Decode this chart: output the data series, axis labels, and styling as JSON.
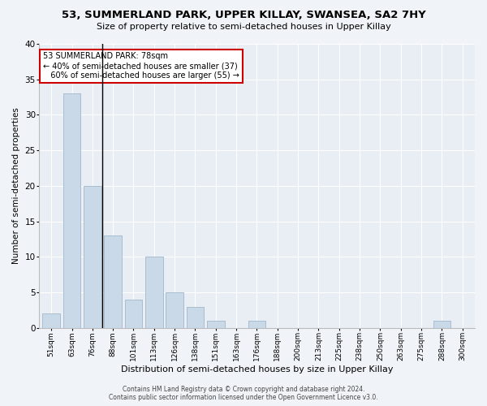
{
  "title": "53, SUMMERLAND PARK, UPPER KILLAY, SWANSEA, SA2 7HY",
  "subtitle": "Size of property relative to semi-detached houses in Upper Killay",
  "xlabel": "Distribution of semi-detached houses by size in Upper Killay",
  "ylabel": "Number of semi-detached properties",
  "categories": [
    "51sqm",
    "63sqm",
    "76sqm",
    "88sqm",
    "101sqm",
    "113sqm",
    "126sqm",
    "138sqm",
    "151sqm",
    "163sqm",
    "176sqm",
    "188sqm",
    "200sqm",
    "213sqm",
    "225sqm",
    "238sqm",
    "250sqm",
    "263sqm",
    "275sqm",
    "288sqm",
    "300sqm"
  ],
  "values": [
    2,
    33,
    20,
    13,
    4,
    10,
    5,
    3,
    1,
    0,
    1,
    0,
    0,
    0,
    0,
    0,
    0,
    0,
    0,
    1,
    0
  ],
  "bar_color": "#c9d9e8",
  "bar_edge_color": "#a0b8cc",
  "vline_x": 2.5,
  "vline_color": "#000000",
  "annotation_text": "53 SUMMERLAND PARK: 78sqm\n← 40% of semi-detached houses are smaller (37)\n   60% of semi-detached houses are larger (55) →",
  "annotation_box_color": "#ffffff",
  "annotation_box_edge_color": "#cc0000",
  "background_color": "#f0f4f8",
  "plot_background": "#e8eef4",
  "ylim": [
    0,
    40
  ],
  "yticks": [
    0,
    5,
    10,
    15,
    20,
    25,
    30,
    35,
    40
  ],
  "footer_line1": "Contains HM Land Registry data © Crown copyright and database right 2024.",
  "footer_line2": "Contains public sector information licensed under the Open Government Licence v3.0."
}
